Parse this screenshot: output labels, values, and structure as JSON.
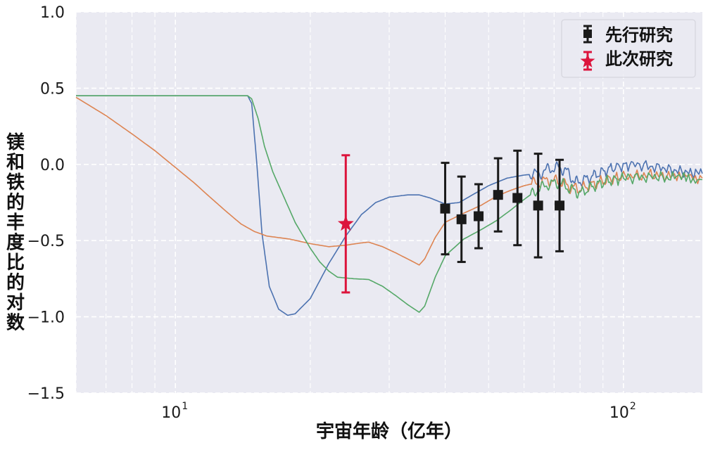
{
  "chart_data": {
    "type": "line",
    "title": "",
    "xlabel": "宇宙年龄（亿年）",
    "ylabel": "镁和铁的丰度比的对数",
    "xscale": "log",
    "xlim": [
      6.0,
      150.0
    ],
    "ylim": [
      -1.5,
      1.0
    ],
    "yticks": [
      {
        "value": 1.0,
        "label": "1.0"
      },
      {
        "value": 0.5,
        "label": "0.5"
      },
      {
        "value": 0.0,
        "label": "0.0"
      },
      {
        "value": -0.5,
        "label": "−0.5"
      },
      {
        "value": -1.0,
        "label": "−1.0"
      },
      {
        "value": -1.5,
        "label": "−1.5"
      }
    ],
    "xticks": [
      {
        "value": 10,
        "base": "10",
        "exp": "1"
      },
      {
        "value": 100,
        "base": "10",
        "exp": "2"
      }
    ],
    "grid": true,
    "legend_position": "top-right",
    "colors": {
      "background": "#eaeaf2",
      "grid": "#ffffff",
      "blue": "#4c72b0",
      "orange": "#dd8452",
      "green": "#55a868",
      "previous": "#1a1a1a",
      "this_study": "#dc143c"
    },
    "series": [
      {
        "color": "blue",
        "points": [
          [
            6.0,
            0.45
          ],
          [
            14.5,
            0.45
          ],
          [
            14.8,
            0.4
          ],
          [
            15.2,
            0.0
          ],
          [
            15.6,
            -0.45
          ],
          [
            16.2,
            -0.8
          ],
          [
            17.0,
            -0.95
          ],
          [
            17.8,
            -0.99
          ],
          [
            18.5,
            -0.98
          ],
          [
            20.0,
            -0.88
          ],
          [
            22.0,
            -0.65
          ],
          [
            24.0,
            -0.47
          ],
          [
            26.0,
            -0.33
          ],
          [
            28.0,
            -0.25
          ],
          [
            30.0,
            -0.215
          ],
          [
            33.0,
            -0.2
          ],
          [
            35.0,
            -0.2
          ],
          [
            37.0,
            -0.22
          ],
          [
            40.0,
            -0.26
          ],
          [
            43.0,
            -0.25
          ],
          [
            46.0,
            -0.2
          ],
          [
            50.0,
            -0.14
          ],
          [
            55.0,
            -0.09
          ],
          [
            60.0,
            -0.07
          ],
          [
            65.0,
            -0.06
          ],
          [
            68.0,
            -0.03
          ],
          [
            72.0,
            -0.02
          ],
          [
            75.0,
            -0.05
          ],
          [
            78.0,
            -0.12
          ],
          [
            82.0,
            -0.1
          ],
          [
            88.0,
            -0.06
          ],
          [
            95.0,
            -0.02
          ],
          [
            105.0,
            0.0
          ],
          [
            120.0,
            -0.02
          ],
          [
            135.0,
            -0.05
          ],
          [
            150.0,
            -0.06
          ]
        ]
      },
      {
        "color": "orange",
        "points": [
          [
            6.0,
            0.44
          ],
          [
            7.0,
            0.32
          ],
          [
            8.0,
            0.2
          ],
          [
            9.0,
            0.09
          ],
          [
            10.0,
            -0.02
          ],
          [
            11.0,
            -0.12
          ],
          [
            12.0,
            -0.22
          ],
          [
            13.0,
            -0.31
          ],
          [
            14.0,
            -0.39
          ],
          [
            15.0,
            -0.44
          ],
          [
            16.0,
            -0.47
          ],
          [
            18.0,
            -0.49
          ],
          [
            20.0,
            -0.52
          ],
          [
            22.0,
            -0.54
          ],
          [
            24.0,
            -0.53
          ],
          [
            26.0,
            -0.515
          ],
          [
            27.0,
            -0.51
          ],
          [
            29.0,
            -0.54
          ],
          [
            31.0,
            -0.58
          ],
          [
            34.0,
            -0.64
          ],
          [
            35.0,
            -0.66
          ],
          [
            36.0,
            -0.62
          ],
          [
            38.0,
            -0.48
          ],
          [
            40.0,
            -0.38
          ],
          [
            44.0,
            -0.32
          ],
          [
            48.0,
            -0.27
          ],
          [
            52.0,
            -0.21
          ],
          [
            56.0,
            -0.17
          ],
          [
            60.0,
            -0.14
          ],
          [
            64.0,
            -0.12
          ],
          [
            68.0,
            -0.105
          ],
          [
            72.0,
            -0.11
          ],
          [
            76.0,
            -0.15
          ],
          [
            80.0,
            -0.16
          ],
          [
            86.0,
            -0.13
          ],
          [
            92.0,
            -0.1
          ],
          [
            100.0,
            -0.08
          ],
          [
            115.0,
            -0.07
          ],
          [
            130.0,
            -0.08
          ],
          [
            150.0,
            -0.09
          ]
        ]
      },
      {
        "color": "green",
        "points": [
          [
            6.0,
            0.45
          ],
          [
            14.5,
            0.45
          ],
          [
            14.8,
            0.43
          ],
          [
            15.3,
            0.3
          ],
          [
            15.8,
            0.12
          ],
          [
            16.5,
            -0.05
          ],
          [
            17.5,
            -0.22
          ],
          [
            18.5,
            -0.38
          ],
          [
            20.0,
            -0.55
          ],
          [
            21.0,
            -0.64
          ],
          [
            22.0,
            -0.7
          ],
          [
            23.0,
            -0.74
          ],
          [
            25.0,
            -0.75
          ],
          [
            27.0,
            -0.755
          ],
          [
            29.0,
            -0.8
          ],
          [
            31.0,
            -0.86
          ],
          [
            33.0,
            -0.92
          ],
          [
            35.0,
            -0.97
          ],
          [
            36.0,
            -0.93
          ],
          [
            38.0,
            -0.74
          ],
          [
            40.0,
            -0.6
          ],
          [
            44.0,
            -0.49
          ],
          [
            48.0,
            -0.43
          ],
          [
            52.0,
            -0.37
          ],
          [
            56.0,
            -0.3
          ],
          [
            60.0,
            -0.23
          ],
          [
            64.0,
            -0.17
          ],
          [
            68.0,
            -0.13
          ],
          [
            72.0,
            -0.12
          ],
          [
            76.0,
            -0.16
          ],
          [
            80.0,
            -0.19
          ],
          [
            86.0,
            -0.14
          ],
          [
            92.0,
            -0.11
          ],
          [
            100.0,
            -0.09
          ],
          [
            115.0,
            -0.08
          ],
          [
            130.0,
            -0.09
          ],
          [
            150.0,
            -0.1
          ]
        ]
      }
    ],
    "previous_studies": {
      "label": "先行研究",
      "points": [
        {
          "x": 40.0,
          "y": -0.29,
          "err": 0.3
        },
        {
          "x": 43.5,
          "y": -0.36,
          "err": 0.28
        },
        {
          "x": 47.5,
          "y": -0.34,
          "err": 0.21
        },
        {
          "x": 52.5,
          "y": -0.2,
          "err": 0.24
        },
        {
          "x": 58.0,
          "y": -0.22,
          "err": 0.31
        },
        {
          "x": 64.5,
          "y": -0.27,
          "err": 0.34
        },
        {
          "x": 72.0,
          "y": -0.27,
          "err": 0.3
        }
      ]
    },
    "this_study": {
      "label": "此次研究",
      "x": 24.0,
      "y": -0.39,
      "err": 0.45
    }
  }
}
